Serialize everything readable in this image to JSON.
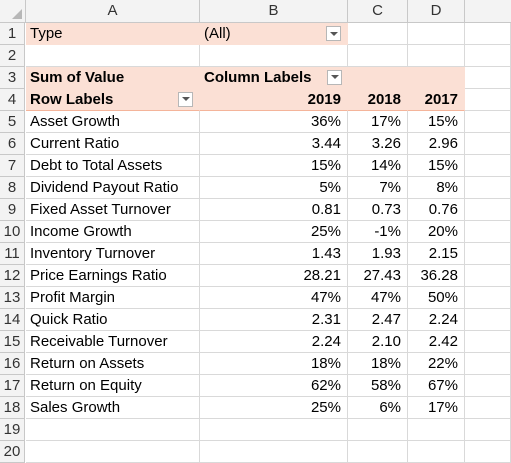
{
  "columns": [
    "A",
    "B",
    "C",
    "D"
  ],
  "row_numbers": [
    "1",
    "2",
    "3",
    "4",
    "5",
    "6",
    "7",
    "8",
    "9",
    "10",
    "11",
    "12",
    "13",
    "14",
    "15",
    "16",
    "17",
    "18",
    "19",
    "20"
  ],
  "filter": {
    "label": "Type",
    "value": "(All)"
  },
  "pivot": {
    "values_header": "Sum of Value",
    "column_labels": "Column Labels",
    "row_labels": "Row Labels",
    "years": [
      "2019",
      "2018",
      "2017"
    ],
    "rows": [
      {
        "label": "Asset Growth",
        "v": [
          "36%",
          "17%",
          "15%"
        ]
      },
      {
        "label": "Current Ratio",
        "v": [
          "3.44",
          "3.26",
          "2.96"
        ]
      },
      {
        "label": "Debt to Total Assets",
        "v": [
          "15%",
          "14%",
          "15%"
        ]
      },
      {
        "label": "Dividend Payout Ratio",
        "v": [
          "5%",
          "7%",
          "8%"
        ]
      },
      {
        "label": "Fixed Asset Turnover",
        "v": [
          "0.81",
          "0.73",
          "0.76"
        ]
      },
      {
        "label": "Income Growth",
        "v": [
          "25%",
          "-1%",
          "20%"
        ]
      },
      {
        "label": "Inventory Turnover",
        "v": [
          "1.43",
          "1.93",
          "2.15"
        ]
      },
      {
        "label": "Price Earnings Ratio",
        "v": [
          "28.21",
          "27.43",
          "36.28"
        ]
      },
      {
        "label": "Profit Margin",
        "v": [
          "47%",
          "47%",
          "50%"
        ]
      },
      {
        "label": "Quick Ratio",
        "v": [
          "2.31",
          "2.47",
          "2.24"
        ]
      },
      {
        "label": "Receivable Turnover",
        "v": [
          "2.24",
          "2.10",
          "2.42"
        ]
      },
      {
        "label": "Return on Assets",
        "v": [
          "18%",
          "18%",
          "22%"
        ]
      },
      {
        "label": "Return on Equity",
        "v": [
          "62%",
          "58%",
          "67%"
        ]
      },
      {
        "label": "Sales Growth",
        "v": [
          "25%",
          "6%",
          "17%"
        ]
      }
    ]
  },
  "colors": {
    "pivot_header": "#fbe0d5",
    "gridline": "#d9d9d9",
    "header_bg": "#f3f3f3"
  }
}
